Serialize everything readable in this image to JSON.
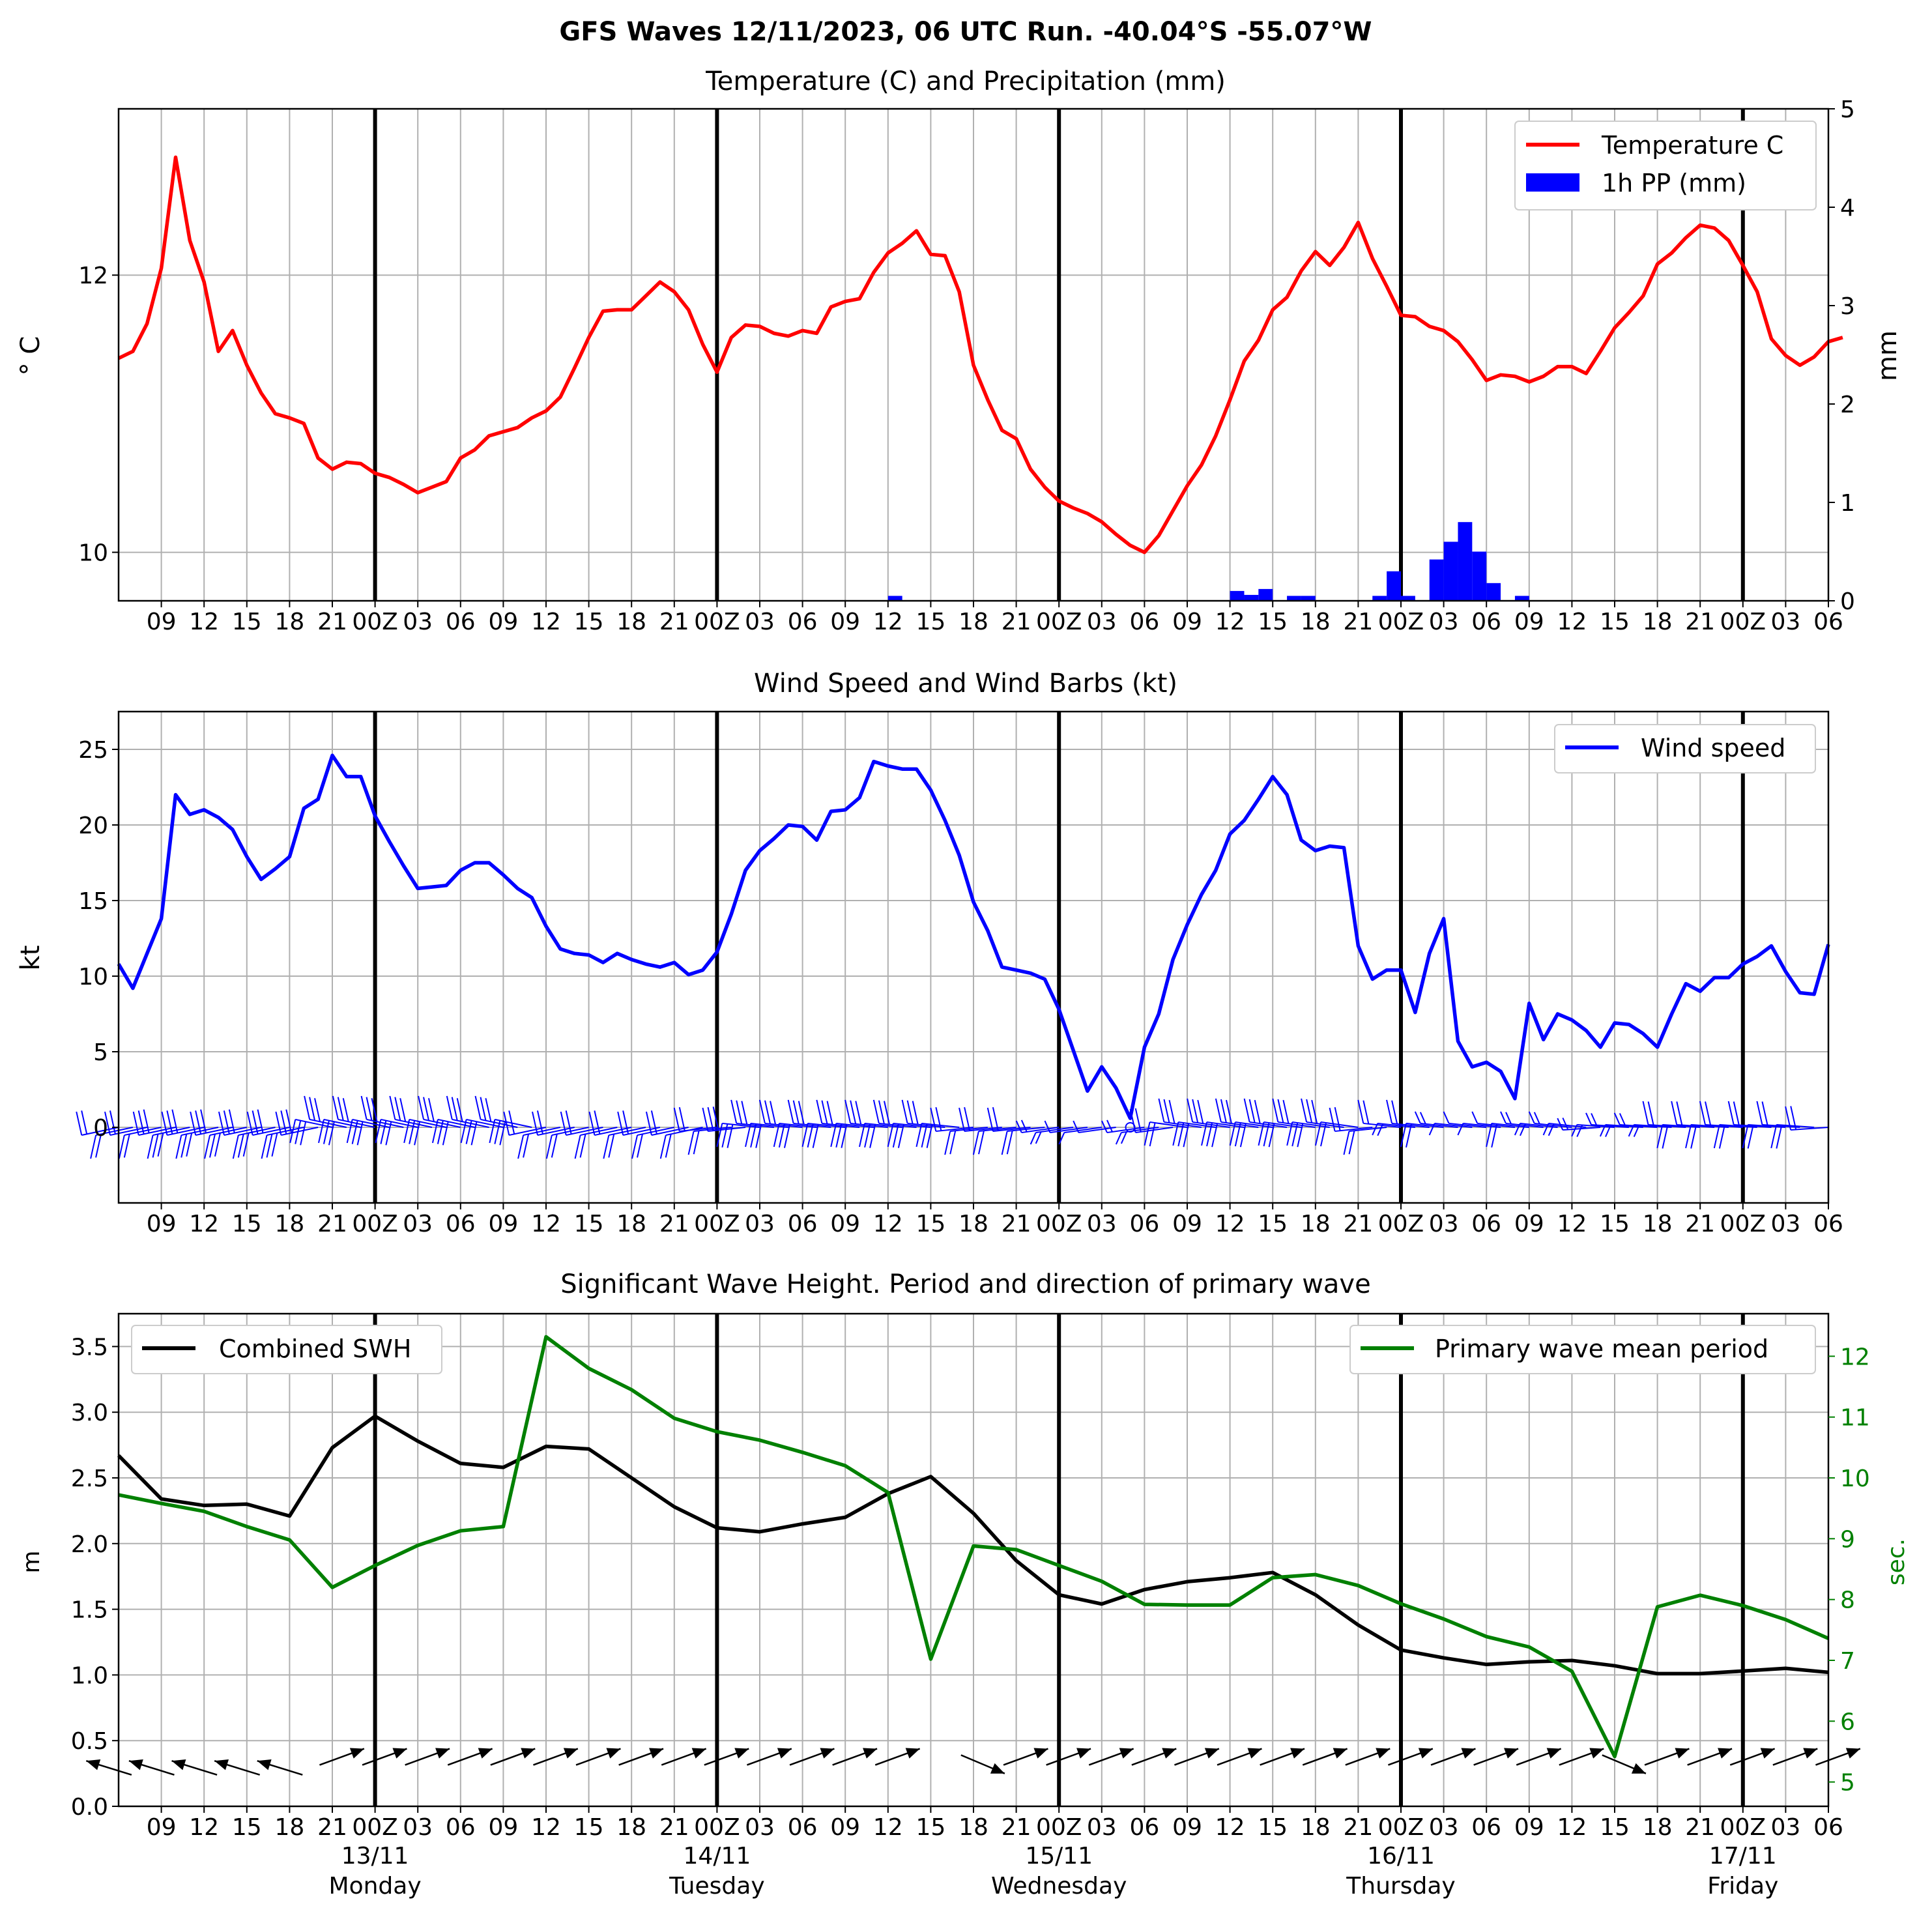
{
  "figure": {
    "title": "GFS Waves 12/11/2023, 06 UTC Run. -40.04°S -55.07°W"
  },
  "x_axis": {
    "hour_ticks": [
      "09",
      "12",
      "15",
      "18",
      "21",
      "00Z",
      "03",
      "06",
      "09",
      "12",
      "15",
      "18",
      "21",
      "00Z",
      "03",
      "06",
      "09",
      "12",
      "15",
      "18",
      "21",
      "00Z",
      "03",
      "06",
      "09",
      "12",
      "15",
      "18",
      "21",
      "00Z",
      "03",
      "06",
      "09",
      "12",
      "15",
      "18",
      "21",
      "00Z",
      "03",
      "06"
    ],
    "days": [
      {
        "date": "13/11",
        "weekday": "Monday"
      },
      {
        "date": "14/11",
        "weekday": "Tuesday"
      },
      {
        "date": "15/11",
        "weekday": "Wednesday"
      },
      {
        "date": "16/11",
        "weekday": "Thursday"
      },
      {
        "date": "17/11",
        "weekday": "Friday"
      }
    ]
  },
  "colors": {
    "temperature": "#ff0000",
    "precip": "#0000ff",
    "wind": "#0000ff",
    "swh": "#000000",
    "period": "#008000",
    "grid": "#b0b0b0"
  },
  "chart_data": [
    {
      "type": "line",
      "title": "Temperature (C) and Precipitation (mm)",
      "ylabel": "$^\\circ$C",
      "y2label": "mm",
      "ylim": [
        9.65,
        13.2
      ],
      "y_ticks": [
        10,
        12
      ],
      "y2lim": [
        0,
        5
      ],
      "y2_ticks": [
        0,
        1,
        2,
        3,
        4,
        5
      ],
      "legend": [
        "Temperature C",
        "1h PP (mm)"
      ],
      "legend_position": "upper right",
      "x_start_hours": 6,
      "x_step_hours": 1,
      "series": [
        {
          "name": "Temperature C",
          "values": [
            11.4,
            11.45,
            11.65,
            12.05,
            12.85,
            12.25,
            11.95,
            11.45,
            11.6,
            11.35,
            11.15,
            11.0,
            10.97,
            10.93,
            10.68,
            10.6,
            10.65,
            10.64,
            10.57,
            10.54,
            10.49,
            10.43,
            10.47,
            10.51,
            10.68,
            10.74,
            10.84,
            10.87,
            10.9,
            10.97,
            11.02,
            11.12,
            11.33,
            11.55,
            11.74,
            11.75,
            11.75,
            11.85,
            11.95,
            11.88,
            11.75,
            11.5,
            11.3,
            11.55,
            11.64,
            11.63,
            11.58,
            11.56,
            11.6,
            11.58,
            11.77,
            11.81,
            11.83,
            12.02,
            12.16,
            12.23,
            12.32,
            12.15,
            12.14,
            11.88,
            11.35,
            11.1,
            10.88,
            10.82,
            10.6,
            10.47,
            10.37,
            10.32,
            10.28,
            10.22,
            10.13,
            10.05,
            10.0,
            10.12,
            10.3,
            10.48,
            10.63,
            10.84,
            11.1,
            11.38,
            11.53,
            11.75,
            11.84,
            12.03,
            12.17,
            12.07,
            12.2,
            12.38,
            12.12,
            11.92,
            11.71,
            11.7,
            11.63,
            11.6,
            11.52,
            11.39,
            11.24,
            11.28,
            11.27,
            11.23,
            11.27,
            11.34,
            11.34,
            11.29,
            11.45,
            11.62,
            11.73,
            11.85,
            12.08,
            12.16,
            12.27,
            12.36,
            12.34,
            12.25,
            12.07,
            11.88,
            11.54,
            11.42,
            11.35,
            11.41,
            11.52,
            11.55
          ]
        },
        {
          "name": "1h PP (mm)",
          "type": "bar",
          "values": [
            0,
            0,
            0,
            0,
            0,
            0,
            0,
            0,
            0,
            0,
            0,
            0,
            0,
            0,
            0,
            0,
            0,
            0,
            0,
            0,
            0,
            0,
            0,
            0,
            0,
            0,
            0,
            0,
            0,
            0,
            0,
            0,
            0,
            0,
            0,
            0,
            0,
            0,
            0,
            0,
            0,
            0,
            0,
            0,
            0,
            0,
            0,
            0,
            0,
            0,
            0,
            0,
            0,
            0,
            0,
            0,
            0,
            0,
            0,
            0,
            0,
            0,
            0,
            0,
            0,
            0,
            0,
            0,
            0,
            0,
            0,
            0,
            0,
            0,
            0,
            0,
            0,
            0,
            0,
            0,
            0,
            0,
            0,
            0,
            0,
            0,
            0,
            0,
            0,
            0,
            0,
            0,
            0,
            0,
            0,
            0,
            0,
            0,
            0,
            0,
            0,
            0,
            0,
            0,
            0,
            0,
            0,
            0,
            0,
            0,
            0,
            0,
            0,
            0,
            0,
            0,
            0,
            0,
            0,
            0,
            0,
            0
          ],
          "nonzero": [
            [
              60.5,
              0.05
            ],
            [
              84.5,
              0.1
            ],
            [
              85.5,
              0.06
            ],
            [
              86.5,
              0.12
            ],
            [
              88.5,
              0.05
            ],
            [
              89.5,
              0.05
            ],
            [
              94.5,
              0.05
            ],
            [
              95.5,
              0.3
            ],
            [
              96.5,
              0.05
            ],
            [
              98.5,
              0.42
            ],
            [
              99.5,
              0.6
            ],
            [
              100.5,
              0.8
            ],
            [
              101.5,
              0.5
            ],
            [
              102.5,
              0.18
            ],
            [
              104.5,
              0.05
            ]
          ]
        }
      ]
    },
    {
      "type": "line",
      "title": "Wind Speed and Wind Barbs (kt)",
      "ylabel": "kt",
      "ylim": [
        -5,
        27.5
      ],
      "y_ticks": [
        0,
        5,
        10,
        15,
        20,
        25
      ],
      "legend": [
        "Wind speed"
      ],
      "legend_position": "upper right",
      "x_start_hours": 6,
      "x_step_hours": 1,
      "series": [
        {
          "name": "Wind speed",
          "values": [
            10.8,
            9.2,
            11.5,
            13.8,
            22.0,
            20.7,
            21.0,
            20.5,
            19.7,
            17.9,
            16.4,
            17.1,
            17.9,
            21.1,
            21.7,
            24.6,
            23.2,
            23.2,
            20.6,
            18.9,
            17.3,
            15.8,
            15.9,
            16.0,
            17.0,
            17.5,
            17.5,
            16.7,
            15.8,
            15.2,
            13.3,
            11.8,
            11.5,
            11.4,
            10.9,
            11.5,
            11.1,
            10.8,
            10.6,
            10.9,
            10.1,
            10.4,
            11.6,
            14.1,
            17.0,
            18.3,
            19.1,
            20.0,
            19.9,
            19.0,
            20.9,
            21.0,
            21.8,
            24.2,
            23.9,
            23.7,
            23.7,
            22.3,
            20.3,
            18.0,
            14.9,
            13.0,
            10.6,
            10.4,
            10.2,
            9.8,
            7.8,
            5.1,
            2.4,
            4.0,
            2.6,
            0.6,
            5.3,
            7.5,
            11.1,
            13.4,
            15.4,
            17.0,
            19.4,
            20.3,
            21.7,
            23.2,
            22.0,
            19.0,
            18.3,
            18.6,
            18.5,
            12.0,
            9.8,
            10.4,
            10.4,
            7.6,
            11.5,
            13.8,
            5.7,
            4.0,
            4.3,
            3.7,
            1.9,
            8.2,
            5.8,
            7.5,
            7.1,
            6.4,
            5.3,
            6.9,
            6.8,
            6.2,
            5.3,
            7.5,
            9.5,
            9.0,
            9.9,
            9.9,
            10.8,
            11.3,
            12.0,
            10.3,
            8.9,
            8.8,
            12.1
          ]
        }
      ],
      "barbs": "wind barbs along y=0 (direction from W/SW/NW varying)"
    },
    {
      "type": "line",
      "title": "Significant Wave Height. Period and direction of primary wave",
      "ylabel": "m",
      "y2label": "sec.",
      "ylim": [
        0.0,
        3.75
      ],
      "y_ticks": [
        0.0,
        0.5,
        1.0,
        1.5,
        2.0,
        2.5,
        3.0,
        3.5
      ],
      "y2lim": [
        4.6,
        12.7
      ],
      "y2_ticks": [
        5,
        6,
        7,
        8,
        9,
        10,
        11,
        12
      ],
      "x_start_hours": 6,
      "x_step_hours": 3,
      "series": [
        {
          "name": "Combined SWH",
          "values": [
            2.67,
            2.34,
            2.29,
            2.3,
            2.21,
            2.73,
            2.97,
            2.78,
            2.61,
            2.58,
            2.74,
            2.72,
            2.5,
            2.28,
            2.12,
            2.09,
            2.15,
            2.2,
            2.38,
            2.51,
            2.23,
            1.87,
            1.61,
            1.54,
            1.65,
            1.71,
            1.74,
            1.78,
            1.61,
            1.38,
            1.19,
            1.13,
            1.08,
            1.1,
            1.11,
            1.07,
            1.01,
            1.01,
            1.03,
            1.05,
            1.02
          ]
        },
        {
          "name": "Primary wave mean period",
          "axis": "right",
          "values": [
            9.72,
            9.58,
            9.45,
            9.2,
            8.98,
            8.2,
            8.56,
            8.89,
            9.13,
            9.2,
            12.32,
            11.8,
            11.45,
            10.98,
            10.76,
            10.62,
            10.42,
            10.2,
            9.76,
            7.02,
            8.88,
            8.82,
            8.56,
            8.3,
            7.92,
            7.91,
            7.91,
            8.36,
            8.41,
            8.23,
            7.93,
            7.68,
            7.39,
            7.22,
            6.82,
            5.42,
            7.88,
            8.07,
            7.9,
            7.67,
            7.36
          ]
        }
      ],
      "legend": [
        "Combined SWH",
        "Primary wave mean period"
      ],
      "legend_position": "upper left / upper right",
      "wave_direction_arrows": "arrows near 0.3 m, mostly pointing ENE"
    }
  ]
}
